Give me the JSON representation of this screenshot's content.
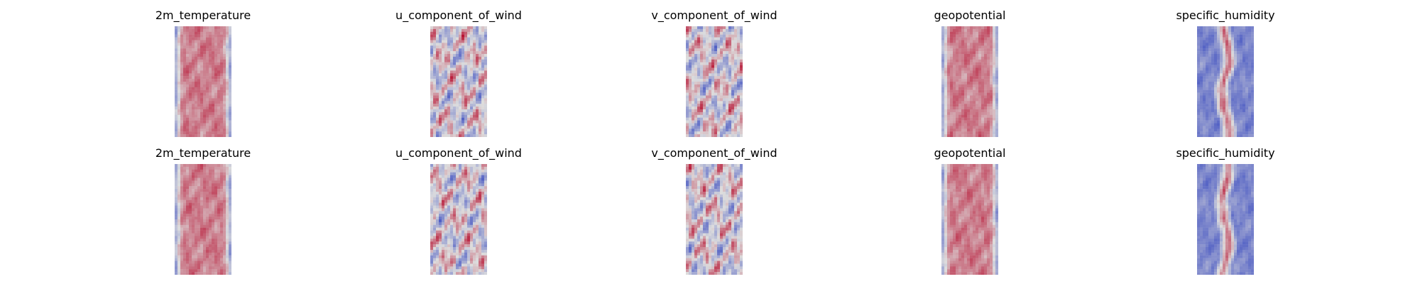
{
  "chart_data": [
    {
      "type": "heatmap",
      "title": "2m_temperature",
      "colormap": "coolwarm",
      "row": 1,
      "column": 1,
      "axes": "off",
      "pattern": "warm-band"
    },
    {
      "type": "heatmap",
      "title": "u_component_of_wind",
      "colormap": "coolwarm",
      "row": 1,
      "column": 2,
      "axes": "off",
      "pattern": "turbulent"
    },
    {
      "type": "heatmap",
      "title": "v_component_of_wind",
      "colormap": "coolwarm",
      "row": 1,
      "column": 3,
      "axes": "off",
      "pattern": "turbulent"
    },
    {
      "type": "heatmap",
      "title": "geopotential",
      "colormap": "coolwarm",
      "row": 1,
      "column": 4,
      "axes": "off",
      "pattern": "warm-band"
    },
    {
      "type": "heatmap",
      "title": "specific_humidity",
      "colormap": "coolwarm",
      "row": 1,
      "column": 5,
      "axes": "off",
      "pattern": "cool-with-warm-core"
    },
    {
      "type": "heatmap",
      "title": "2m_temperature",
      "colormap": "coolwarm",
      "row": 2,
      "column": 1,
      "axes": "off",
      "pattern": "warm-band"
    },
    {
      "type": "heatmap",
      "title": "u_component_of_wind",
      "colormap": "coolwarm",
      "row": 2,
      "column": 2,
      "axes": "off",
      "pattern": "turbulent"
    },
    {
      "type": "heatmap",
      "title": "v_component_of_wind",
      "colormap": "coolwarm",
      "row": 2,
      "column": 3,
      "axes": "off",
      "pattern": "turbulent"
    },
    {
      "type": "heatmap",
      "title": "geopotential",
      "colormap": "coolwarm",
      "row": 2,
      "column": 4,
      "axes": "off",
      "pattern": "warm-band"
    },
    {
      "type": "heatmap",
      "title": "specific_humidity",
      "colormap": "coolwarm",
      "row": 2,
      "column": 5,
      "axes": "off",
      "pattern": "cool-with-warm-core"
    }
  ],
  "colors": {
    "background": "#ffffff",
    "colormap_low": "#3b4cc0",
    "colormap_mid": "#dddddd",
    "colormap_high": "#b40426"
  }
}
